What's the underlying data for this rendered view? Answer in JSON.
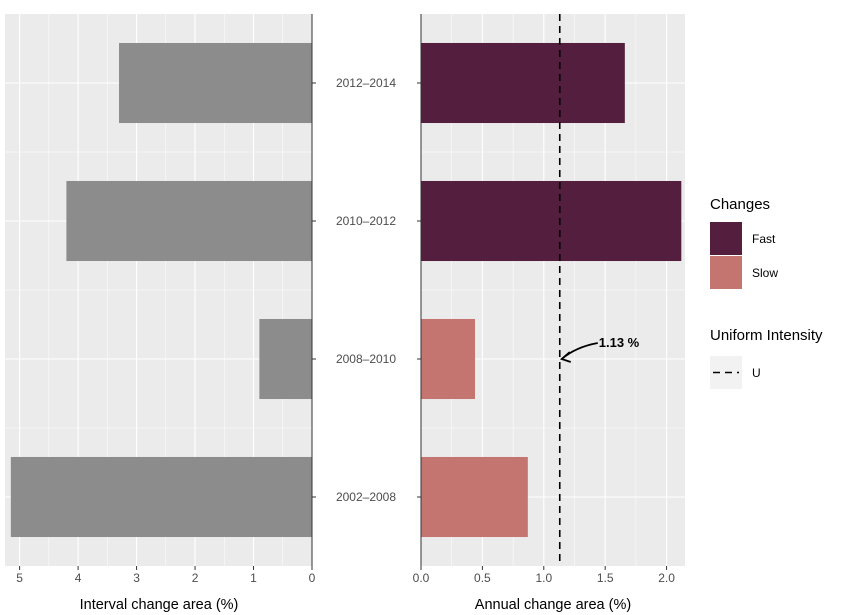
{
  "chart_data": [
    {
      "type": "bar",
      "orientation": "horizontal",
      "x_reversed": true,
      "categories": [
        "2012–2014",
        "2010–2012",
        "2008–2010",
        "2002–2008"
      ],
      "values": [
        3.3,
        4.2,
        0.9,
        5.15
      ],
      "xlabel": "Interval change area (%)",
      "xlim": [
        0,
        5.25
      ],
      "xticks": [
        "5",
        "4",
        "3",
        "2",
        "1",
        "0"
      ],
      "bar_color": "#8c8c8c",
      "grid": true
    },
    {
      "type": "bar",
      "orientation": "horizontal",
      "categories": [
        "2012–2014",
        "2010–2012",
        "2008–2010",
        "2002–2008"
      ],
      "values": [
        1.66,
        2.12,
        0.44,
        0.87
      ],
      "groups": [
        "Fast",
        "Fast",
        "Slow",
        "Slow"
      ],
      "xlabel": "Annual change area (%)",
      "xlim": [
        0,
        2.15
      ],
      "xticks": [
        "0.0",
        "0.5",
        "1.0",
        "1.5",
        "2.0"
      ],
      "reference_line": {
        "value": 1.13,
        "label": "1.13 %",
        "style": "dashed"
      },
      "grid": true,
      "legend": {
        "placement": "right",
        "changes_title": "Changes",
        "items": [
          {
            "label": "Fast",
            "color": "#541e3e"
          },
          {
            "label": "Slow",
            "color": "#c47570"
          }
        ],
        "uniform_title": "Uniform Intensity",
        "uniform_label": "U"
      }
    }
  ]
}
